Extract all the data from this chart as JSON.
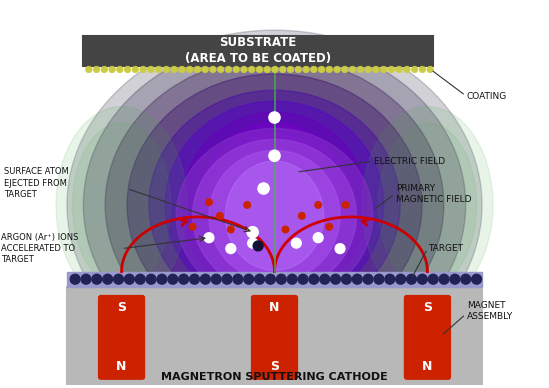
{
  "title": "MAGNETRON SPUTTERING CATHODE",
  "substrate_label": "SUBSTRATE\n(AREA TO BE COATED)",
  "labels": {
    "coating": "COATING",
    "surface_atom": "SURFACE ATOM\nEJECTED FROM\nTARGET",
    "argon": "ARGON (Ar⁺) IONS\nACCELERATED TO\nTARGET",
    "electric_field": "ELECTRIC FIELD",
    "magnetic_field": "PRIMARY\nMAGNETIC FIELD",
    "target": "TARGET",
    "magnet_assembly": "MAGNET\nASSEMBLY"
  },
  "bg_color": "#ffffff",
  "substrate_color": "#555555",
  "substrate_text_color": "#ffffff",
  "target_layer_color": "#8888cc",
  "cathode_bg": "#aaaaaa",
  "plasma_purple": "#6600aa",
  "plasma_outer": "#220044"
}
